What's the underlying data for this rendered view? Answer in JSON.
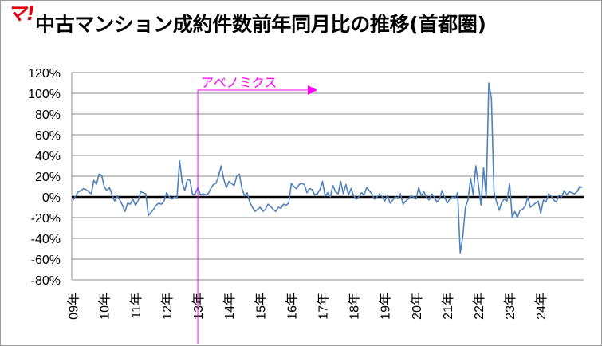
{
  "header": {
    "logo_text": "マ!",
    "title": "中古マンション成約件数前年同月比の推移(首都圏)"
  },
  "colors": {
    "series": "#4f81bd",
    "annotation": "#ff00ff",
    "zero_line": "#000000",
    "grid": "#8c8c8c",
    "logo": "#e60012"
  },
  "chart_data": {
    "type": "line",
    "title": "中古マンション成約件数前年同月比の推移(首都圏)",
    "xlabel": "",
    "ylabel": "",
    "grid": true,
    "legend": "none",
    "ylim": [
      -80,
      120
    ],
    "y_ticks": [
      "120%",
      "100%",
      "80%",
      "60%",
      "40%",
      "20%",
      "0%",
      "-20%",
      "-40%",
      "-60%",
      "-80%"
    ],
    "x_ticks": [
      "09年",
      "10年",
      "11年",
      "12年",
      "13年",
      "14年",
      "15年",
      "16年",
      "17年",
      "18年",
      "19年",
      "20年",
      "21年",
      "22年",
      "23年",
      "24年"
    ],
    "x_start": "2009-01",
    "series": [
      {
        "values": [
          -3,
          1,
          5,
          6,
          8,
          7,
          5,
          3,
          16,
          12,
          22,
          21,
          10,
          6,
          9,
          2,
          -4,
          1,
          -3,
          -8,
          -14,
          -6,
          -7,
          -2,
          -8,
          -4,
          5,
          4,
          3,
          -18,
          -15,
          -12,
          -8,
          -6,
          -7,
          -4,
          4,
          0,
          -2,
          0,
          -1,
          35,
          14,
          6,
          17,
          16,
          2,
          3,
          9,
          2,
          3,
          2,
          3,
          8,
          12,
          13,
          20,
          30,
          17,
          9,
          15,
          13,
          11,
          20,
          22,
          8,
          1,
          4,
          -5,
          -10,
          -14,
          -12,
          -10,
          -14,
          -12,
          -7,
          -9,
          -12,
          -14,
          -10,
          -11,
          -7,
          -8,
          -6,
          13,
          10,
          8,
          12,
          13,
          12,
          4,
          8,
          7,
          2,
          3,
          7,
          15,
          1,
          4,
          0,
          11,
          5,
          3,
          15,
          3,
          12,
          2,
          8,
          1,
          -2,
          0,
          4,
          2,
          9,
          6,
          3,
          -2,
          0,
          3,
          0,
          -4,
          2,
          -6,
          -3,
          0,
          -1,
          3,
          -7,
          -4,
          -2,
          1,
          0,
          -2,
          9,
          1,
          5,
          0,
          -3,
          3,
          0,
          -5,
          -2,
          6,
          0,
          -6,
          -2,
          0,
          -1,
          4,
          -54,
          -38,
          -10,
          -3,
          18,
          2,
          30,
          12,
          -8,
          28,
          0,
          110,
          95,
          5,
          -5,
          -13,
          -5,
          -2,
          -4,
          13,
          -20,
          -14,
          -20,
          -13,
          -12,
          -9,
          0,
          -10,
          -8,
          -6,
          -4,
          -16,
          -3,
          -5,
          3,
          1,
          -3,
          -5,
          2,
          0,
          6,
          2,
          5,
          4,
          3,
          5,
          10,
          9
        ]
      }
    ]
  },
  "annotation": {
    "label": "アベノミクス",
    "start": "2013-01"
  }
}
